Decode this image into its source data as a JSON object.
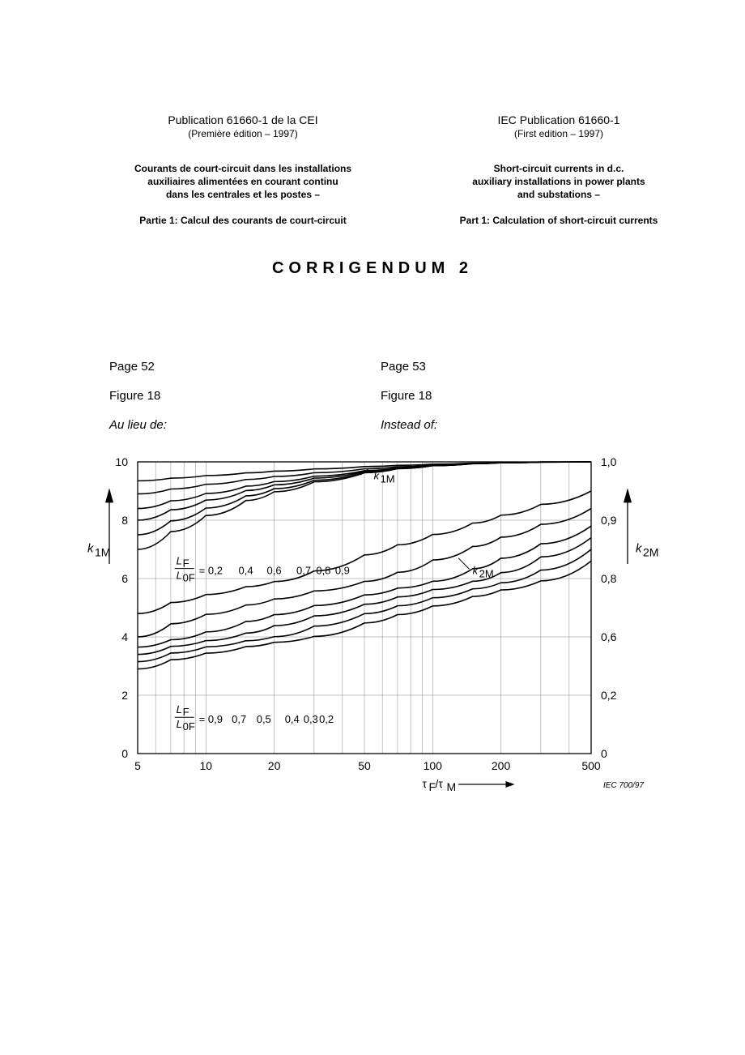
{
  "header": {
    "left": {
      "pub_title": "Publication 61660-1 de la CEI",
      "pub_edition": "(Première édition – 1997)",
      "desc_line1": "Courants de court-circuit dans les installations",
      "desc_line2": "auxiliaires alimentées en courant continu",
      "desc_line3": "dans les centrales et les postes –",
      "part": "Partie 1: Calcul des courants de court-circuit"
    },
    "right": {
      "pub_title": "IEC Publication 61660-1",
      "pub_edition": "(First edition – 1997)",
      "desc_line1": "Short-circuit currents in d.c.",
      "desc_line2": "auxiliary installations in power plants",
      "desc_line3": "and substations –",
      "part": "Part 1: Calculation of short-circuit currents"
    }
  },
  "corrigendum_title": "CORRIGENDUM 2",
  "refs": {
    "left": {
      "page": "Page 52",
      "figure": "Figure 18",
      "note": "Au lieu de:"
    },
    "right": {
      "page": "Page 53",
      "figure": "Figure 18",
      "note": "Instead of:"
    }
  },
  "chart": {
    "type": "line",
    "x_scale": "log",
    "xlim": [
      5,
      500
    ],
    "x_ticks": [
      5,
      10,
      20,
      50,
      100,
      200,
      500
    ],
    "x_tick_labels": [
      "5",
      "10",
      "20",
      "50",
      "100",
      "200",
      "500"
    ],
    "x_axis_label": "τF/τM",
    "y_left_label": "k1M",
    "y_right_label": "k2M",
    "y_left_lim": [
      0,
      10
    ],
    "y_left_ticks": [
      0,
      2,
      4,
      6,
      8,
      10
    ],
    "y_right_lim": [
      0,
      1.0
    ],
    "y_right_ticks": [
      0,
      0.2,
      0.6,
      0.8,
      0.9,
      1.0
    ],
    "grid_color": "#888888",
    "curve_color": "#000000",
    "background_color": "#ffffff",
    "ratio_label_top": "LF/L0F = 0,2",
    "ratio_values_top": [
      "0,4",
      "0,6",
      "0,7",
      "0,8",
      "0,9"
    ],
    "ratio_label_bottom": "LF/L0F = 0,9",
    "ratio_values_bottom": [
      "0,7",
      "0,5",
      "0,4",
      "0,3",
      "0,2"
    ],
    "annotation_k1m": "k1M",
    "annotation_k2m": "k2M",
    "iec_ref": "IEC  700/97",
    "upper_curves": [
      {
        "label": "0,2",
        "y_at_5": 9.35,
        "y_at_500": 10.0
      },
      {
        "label": "0,4",
        "y_at_5": 8.9,
        "y_at_500": 10.0
      },
      {
        "label": "0,6",
        "y_at_5": 8.4,
        "y_at_500": 10.0
      },
      {
        "label": "0,7",
        "y_at_5": 8.0,
        "y_at_500": 10.0
      },
      {
        "label": "0,8",
        "y_at_5": 7.5,
        "y_at_500": 10.0
      },
      {
        "label": "0,9",
        "y_at_5": 7.0,
        "y_at_500": 10.0
      }
    ],
    "lower_curves": [
      {
        "label": "0,9",
        "y_at_5_r": 0.68,
        "y_at_500_r": 0.95
      },
      {
        "label": "0,7",
        "y_at_5_r": 0.6,
        "y_at_500_r": 0.92
      },
      {
        "label": "0,5",
        "y_at_5_r": 0.53,
        "y_at_500_r": 0.89
      },
      {
        "label": "0,4",
        "y_at_5_r": 0.48,
        "y_at_500_r": 0.87
      },
      {
        "label": "0,3",
        "y_at_5_r": 0.43,
        "y_at_500_r": 0.85
      },
      {
        "label": "0,2",
        "y_at_5_r": 0.38,
        "y_at_500_r": 0.83
      }
    ]
  }
}
